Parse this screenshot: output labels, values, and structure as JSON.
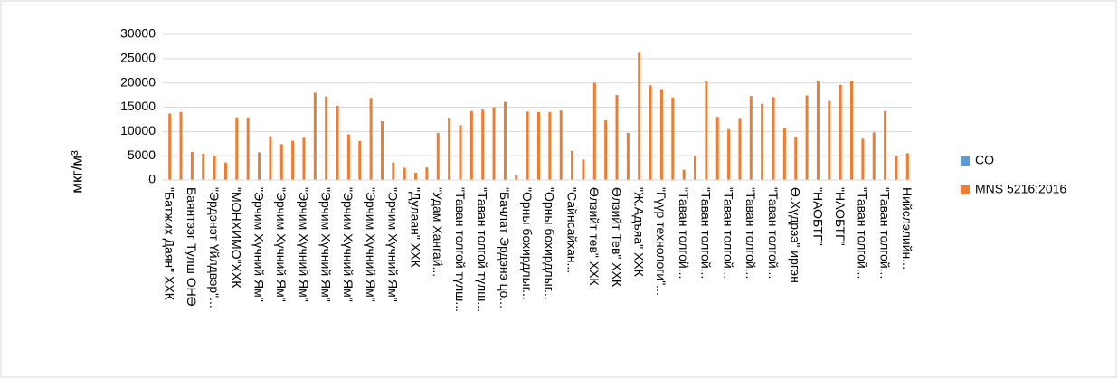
{
  "chart_data": {
    "type": "bar",
    "y_label": "мкг/м³",
    "categories": [
      "\"Батжих Даян\" ХХК",
      null,
      "Баянтээг Тулш ОНӨ",
      null,
      "\"Эрдэнэт Үйлдвэр\"...",
      null,
      "\"МОНХИМО\"ХХК",
      null,
      "\"Эрчим Хүчний Ям\"",
      null,
      "\"Эрчим Хүчний Ям\"",
      null,
      "\"Эрчим Хүчний Ям\"",
      null,
      "\"Эрчим Хүчний Ям\"",
      null,
      "\"Эрчим Хүчний Ям\"",
      null,
      "\"Эрчим Хүчний Ям\"",
      null,
      "\"Эрчим Хүчний Ям\"",
      null,
      "\"Дулаан\" ХХК",
      null,
      "\"Удам Хангай...",
      null,
      "\"Таван толгой түлш...",
      null,
      "\"Таван толгой түлш...",
      null,
      "\"Бачлат Эрдэнэ цо...",
      null,
      "\"Орны бохирдлыг...",
      null,
      "\"Орны бохирдлыг...",
      null,
      "\"Сайнсайхан...",
      null,
      "Өлзийт тев\" ХХК",
      null,
      "Өлзийт Тев\" ХХК",
      null,
      "\"Ж.Адъяа\" ХХК",
      null,
      "\"Гүүр технологи\"...",
      null,
      "\"Таван толгой...",
      null,
      "\"Таван толгой...",
      null,
      "\"Таван толгой...",
      null,
      "\"Таван толгой...",
      null,
      "\"Таван толгой...",
      null,
      "Ө.Хүдрээ\" иргэн",
      null,
      "\"НАОБТГ\"",
      null,
      "\"НАОБТГ\"",
      null,
      "\"Таван толгой...",
      null,
      "\"Таван толгой...",
      null,
      "Нийслэлийн..."
    ],
    "series": [
      {
        "name": "CO",
        "color": "#5b9bd5",
        "values": [
          0,
          0,
          0,
          0,
          0,
          0,
          0,
          0,
          0,
          0,
          0,
          0,
          0,
          0,
          0,
          0,
          0,
          0,
          0,
          0,
          0,
          0,
          0,
          0,
          0,
          0,
          0,
          0,
          0,
          0,
          0,
          0,
          0,
          0,
          0,
          0,
          0,
          0,
          0,
          0,
          0,
          0,
          0,
          0,
          0,
          0,
          0,
          0,
          0,
          0,
          0,
          0,
          0,
          0,
          0,
          0,
          0,
          0,
          0,
          0,
          0,
          0,
          0,
          0,
          0,
          0,
          0
        ]
      },
      {
        "name": "MNS 5216:2016",
        "color": "#ed7d31",
        "values": [
          13700,
          14000,
          5800,
          5400,
          5000,
          3600,
          12900,
          12800,
          5700,
          9000,
          7400,
          8100,
          8700,
          18000,
          17200,
          15300,
          9400,
          8000,
          16900,
          12100,
          3600,
          2500,
          1500,
          2600,
          9700,
          12700,
          11300,
          14200,
          14500,
          15000,
          16100,
          900,
          14100,
          14000,
          14000,
          14300,
          6000,
          4200,
          20000,
          12300,
          17500,
          9700,
          26200,
          19500,
          18700,
          17000,
          2100,
          5000,
          20400,
          13000,
          10500,
          12600,
          17300,
          15700,
          17100,
          10700,
          8800,
          17400,
          20400,
          16300,
          19600,
          20400,
          8500,
          9800,
          14200,
          4900,
          5500
        ]
      }
    ],
    "ylim": [
      0,
      30000
    ],
    "yticks": [
      0,
      5000,
      10000,
      15000,
      20000,
      25000,
      30000
    ],
    "grid": true,
    "legend": "right"
  }
}
